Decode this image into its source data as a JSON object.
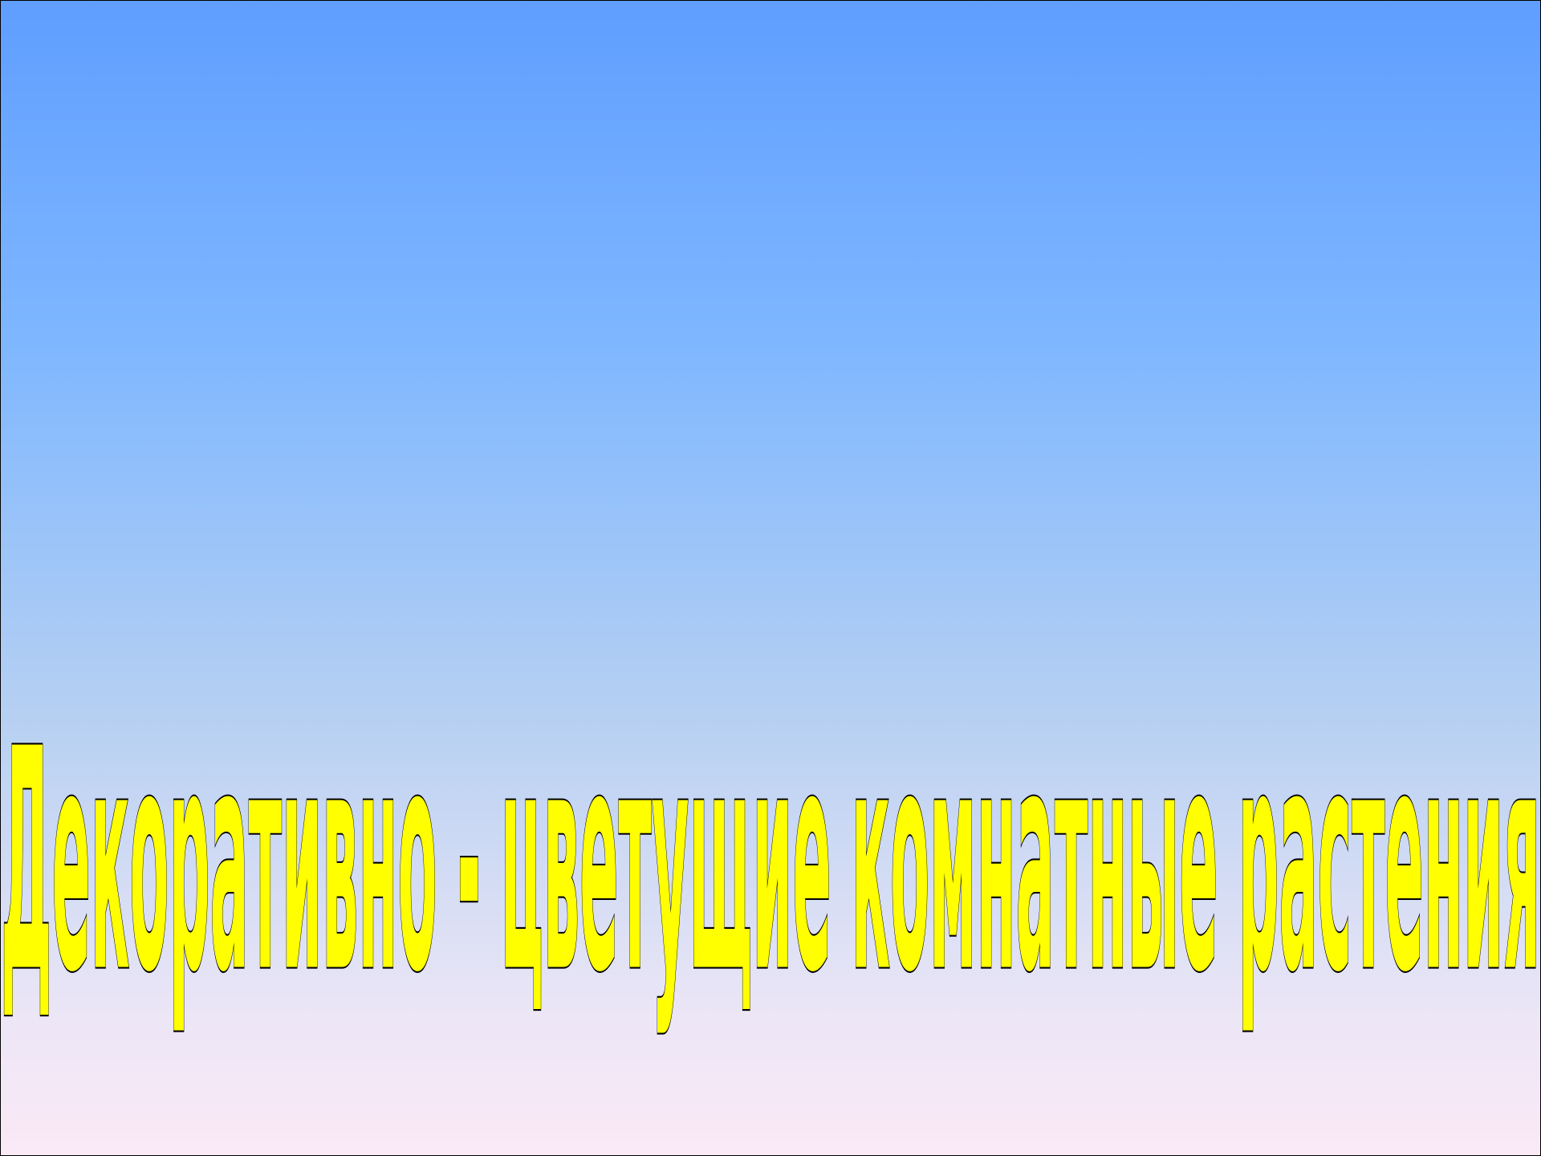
{
  "slide": {
    "title": "Декоративно - цветущие комнатные растения",
    "colors": {
      "background_top": "#5f9eff",
      "background_middle": "#b6d0f2",
      "background_bottom": "#fbe9f6",
      "text_fill": "#ffff00",
      "text_outline": "#000000"
    }
  }
}
